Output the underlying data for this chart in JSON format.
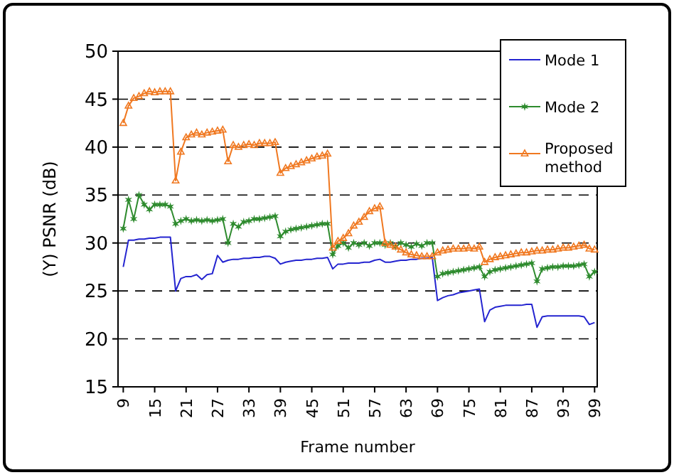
{
  "chart_data": {
    "type": "line",
    "xlabel": "Frame number",
    "ylabel": "(Y) PSNR (dB)",
    "x": [
      9,
      10,
      11,
      12,
      13,
      14,
      15,
      16,
      17,
      18,
      19,
      20,
      21,
      22,
      23,
      24,
      25,
      26,
      27,
      28,
      29,
      30,
      31,
      32,
      33,
      34,
      35,
      36,
      37,
      38,
      39,
      40,
      41,
      42,
      43,
      44,
      45,
      46,
      47,
      48,
      49,
      50,
      51,
      52,
      53,
      54,
      55,
      56,
      57,
      58,
      59,
      60,
      61,
      62,
      63,
      64,
      65,
      66,
      67,
      68,
      69,
      70,
      71,
      72,
      73,
      74,
      75,
      76,
      77,
      78,
      79,
      80,
      81,
      82,
      83,
      84,
      85,
      86,
      87,
      88,
      89,
      90,
      91,
      92,
      93,
      94,
      95,
      96,
      97,
      98,
      99
    ],
    "xlim": [
      8,
      99.5
    ],
    "xticks": [
      9,
      15,
      21,
      27,
      33,
      39,
      45,
      51,
      57,
      63,
      69,
      75,
      81,
      87,
      93,
      99
    ],
    "ylim": [
      15,
      50
    ],
    "yticks": [
      15,
      20,
      25,
      30,
      35,
      40,
      45,
      50
    ],
    "grid": "y",
    "legend": "top right",
    "series": [
      {
        "name": "Mode 1",
        "color": "#2424d0",
        "marker": "none",
        "values": [
          27.5,
          30.3,
          30.3,
          30.4,
          30.4,
          30.5,
          30.5,
          30.6,
          30.6,
          30.6,
          25.0,
          26.3,
          26.5,
          26.5,
          26.7,
          26.2,
          26.7,
          26.8,
          28.7,
          28.0,
          28.2,
          28.3,
          28.3,
          28.4,
          28.4,
          28.5,
          28.5,
          28.6,
          28.6,
          28.4,
          27.8,
          28.0,
          28.1,
          28.2,
          28.2,
          28.3,
          28.3,
          28.4,
          28.4,
          28.5,
          27.3,
          27.8,
          27.8,
          27.9,
          27.9,
          27.9,
          28.0,
          28.0,
          28.2,
          28.3,
          28.0,
          28.0,
          28.1,
          28.2,
          28.2,
          28.3,
          28.3,
          28.4,
          28.4,
          28.5,
          24.0,
          24.3,
          24.5,
          24.6,
          24.8,
          24.9,
          25.0,
          25.1,
          25.2,
          21.8,
          23.0,
          23.3,
          23.4,
          23.5,
          23.5,
          23.5,
          23.5,
          23.6,
          23.6,
          21.2,
          22.3,
          22.4,
          22.4,
          22.4,
          22.4,
          22.4,
          22.4,
          22.4,
          22.3,
          21.5,
          21.7
        ]
      },
      {
        "name": "Mode 2",
        "color": "#2e8b2e",
        "marker": "cross",
        "values": [
          31.5,
          34.5,
          32.5,
          35.0,
          34.0,
          33.5,
          34.0,
          34.0,
          34.0,
          33.8,
          32.0,
          32.3,
          32.5,
          32.3,
          32.4,
          32.3,
          32.4,
          32.3,
          32.4,
          32.5,
          30.0,
          32.0,
          31.7,
          32.2,
          32.3,
          32.5,
          32.5,
          32.6,
          32.7,
          32.8,
          30.7,
          31.2,
          31.4,
          31.5,
          31.6,
          31.7,
          31.8,
          31.9,
          32.0,
          32.0,
          28.8,
          29.7,
          30.0,
          29.5,
          30.0,
          29.8,
          30.0,
          29.7,
          30.0,
          30.0,
          29.8,
          30.0,
          29.6,
          30.0,
          29.8,
          29.6,
          29.9,
          29.7,
          30.0,
          30.0,
          26.5,
          26.8,
          26.9,
          27.0,
          27.1,
          27.2,
          27.3,
          27.4,
          27.5,
          26.5,
          27.0,
          27.2,
          27.3,
          27.4,
          27.5,
          27.6,
          27.7,
          27.8,
          27.9,
          26.0,
          27.3,
          27.4,
          27.5,
          27.5,
          27.6,
          27.6,
          27.6,
          27.7,
          27.8,
          26.5,
          27.0
        ]
      },
      {
        "name": "Proposed method",
        "color": "#f07820",
        "marker": "triangle",
        "values": [
          42.5,
          44.3,
          45.1,
          45.3,
          45.6,
          45.8,
          45.7,
          45.8,
          45.8,
          45.8,
          36.5,
          39.5,
          41.0,
          41.3,
          41.5,
          41.3,
          41.5,
          41.6,
          41.7,
          41.8,
          38.5,
          40.2,
          40.0,
          40.2,
          40.3,
          40.2,
          40.4,
          40.4,
          40.4,
          40.5,
          37.3,
          37.8,
          38.0,
          38.2,
          38.4,
          38.6,
          38.8,
          39.0,
          39.1,
          39.3,
          29.5,
          30.2,
          30.5,
          31.0,
          31.8,
          32.2,
          32.7,
          33.3,
          33.6,
          33.8,
          30.0,
          29.8,
          29.6,
          29.3,
          29.0,
          28.8,
          28.7,
          28.6,
          28.6,
          28.6,
          29.0,
          29.2,
          29.3,
          29.4,
          29.4,
          29.4,
          29.5,
          29.4,
          29.6,
          28.0,
          28.3,
          28.5,
          28.6,
          28.7,
          28.8,
          28.9,
          29.0,
          29.0,
          29.1,
          29.2,
          29.2,
          29.3,
          29.3,
          29.4,
          29.5,
          29.5,
          29.6,
          29.7,
          29.8,
          29.4,
          29.3
        ]
      }
    ]
  }
}
